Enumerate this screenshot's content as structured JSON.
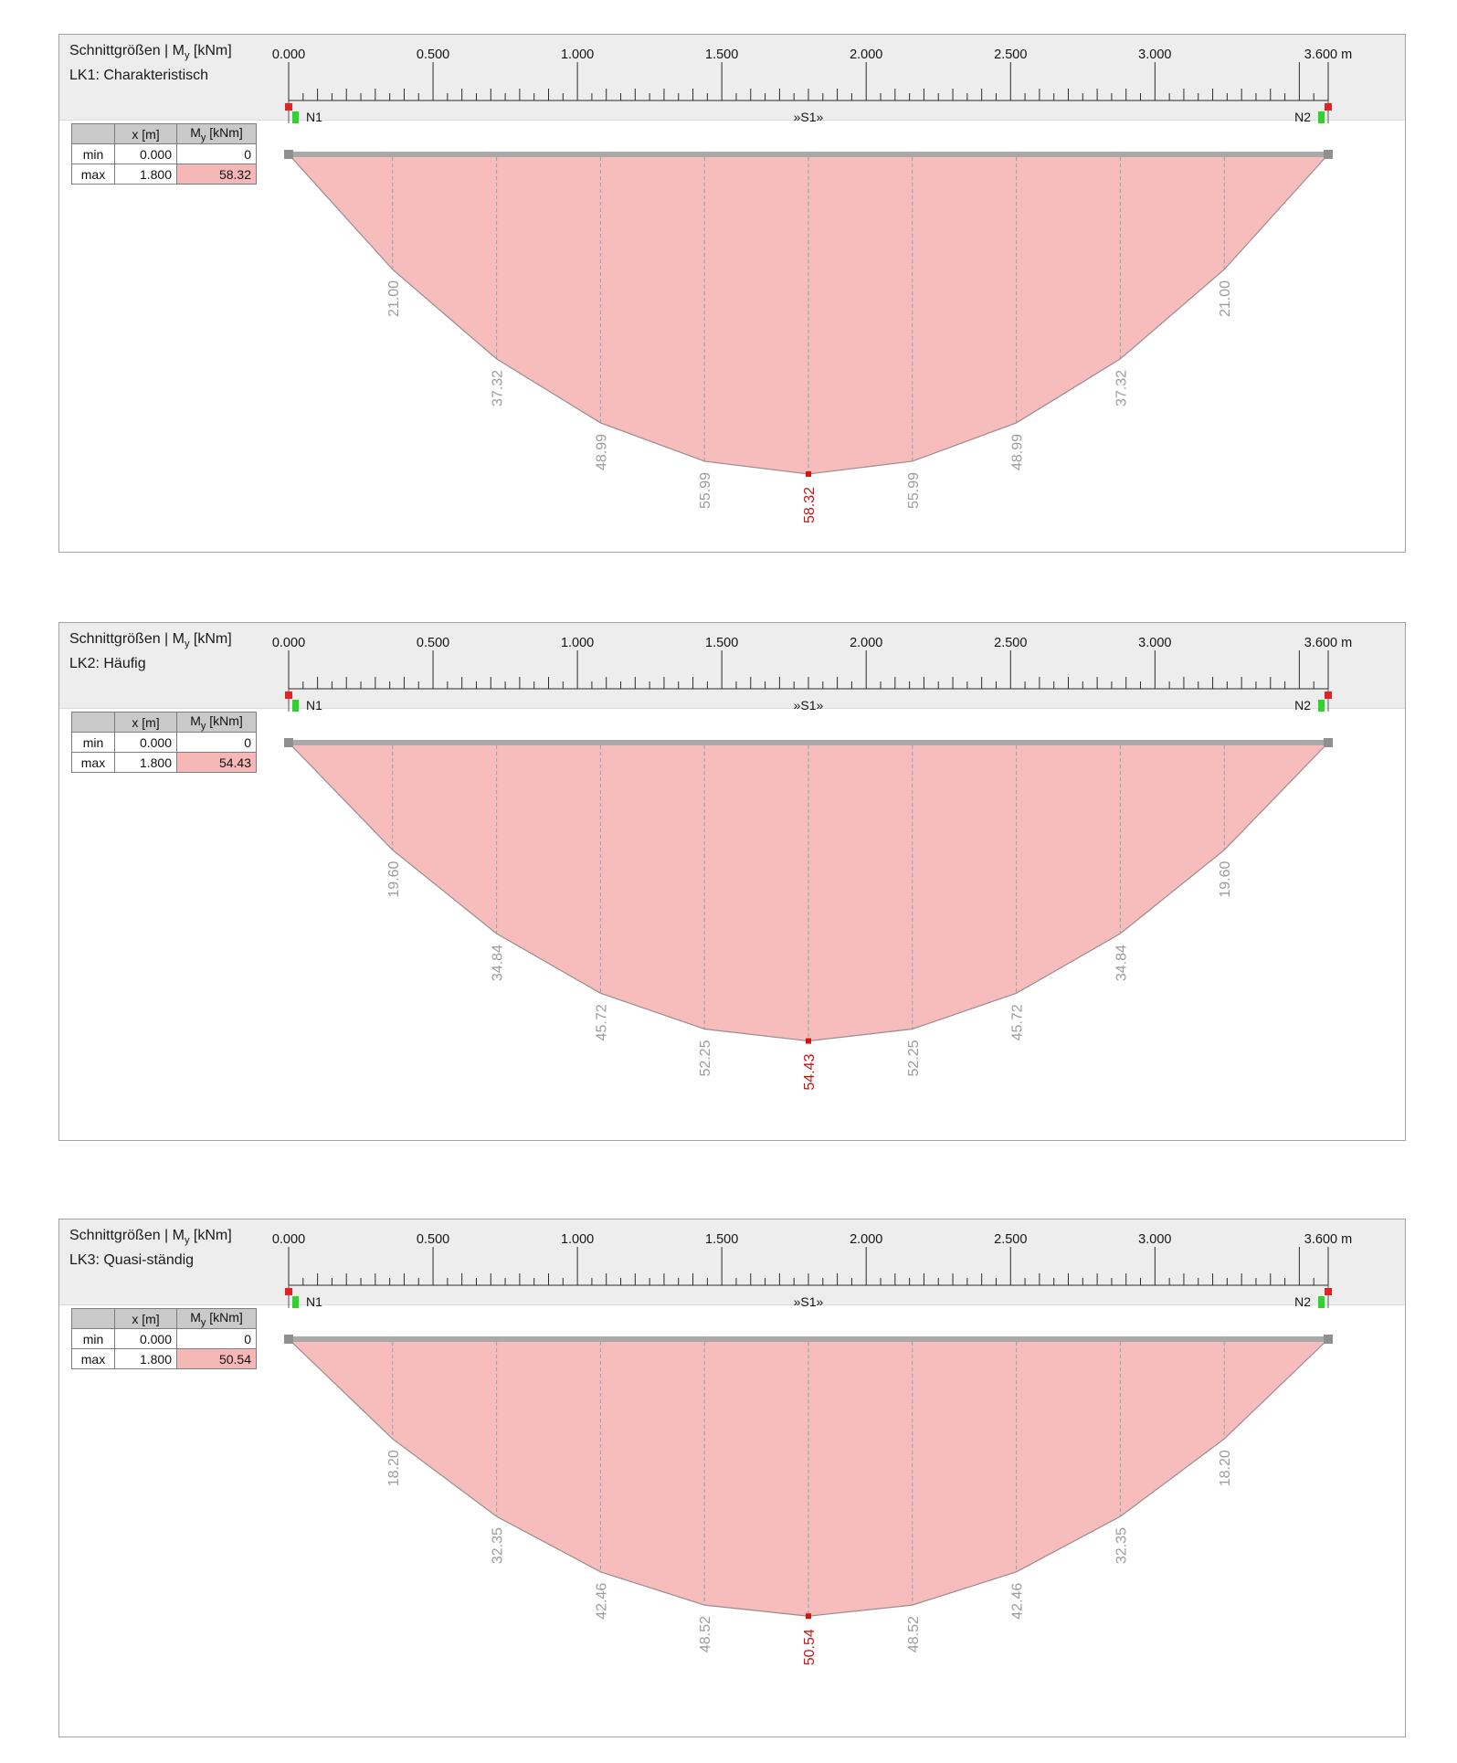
{
  "common": {
    "title_pre": "Schnittgrößen | M",
    "title_sub": "y",
    "title_post": " [kNm]",
    "node_left": "N1",
    "node_right": "N2",
    "segment_label": "»S1»",
    "table": {
      "x_header": "x [m]",
      "m_header_pre": "M",
      "m_header_sub": "y",
      "m_header_post": " [kNm]",
      "min_label": "min",
      "max_label": "max"
    }
  },
  "ruler": {
    "length_m": 3.6,
    "minor_step_m": 0.05,
    "labels": [
      {
        "v": 0.0,
        "text": "0.000"
      },
      {
        "v": 0.5,
        "text": "0.500"
      },
      {
        "v": 1.0,
        "text": "1.000"
      },
      {
        "v": 1.5,
        "text": "1.500"
      },
      {
        "v": 2.0,
        "text": "2.000"
      },
      {
        "v": 2.5,
        "text": "2.500"
      },
      {
        "v": 3.0,
        "text": "3.000"
      },
      {
        "v": 3.6,
        "text": "3.600 m"
      }
    ]
  },
  "panels": [
    {
      "subtitle": "LK1: Charakteristisch",
      "table": {
        "min_x": "0.000",
        "min_m": "0",
        "max_x": "1.800",
        "max_m": "58.32"
      }
    },
    {
      "subtitle": "LK2: Häufig",
      "table": {
        "min_x": "0.000",
        "min_m": "0",
        "max_x": "1.800",
        "max_m": "54.43"
      }
    },
    {
      "subtitle": "LK3: Quasi-ständig",
      "table": {
        "min_x": "0.000",
        "min_m": "0",
        "max_x": "1.800",
        "max_m": "50.54"
      }
    }
  ],
  "chart_data": [
    {
      "type": "area",
      "title": "Schnittgrößen | My [kNm] — LK1: Charakteristisch",
      "xlabel": "x [m]",
      "ylabel": "My [kNm]",
      "x_range_m": [
        0,
        3.6
      ],
      "x_m": [
        0,
        0.36,
        0.72,
        1.08,
        1.44,
        1.8,
        2.16,
        2.52,
        2.88,
        3.24,
        3.6
      ],
      "my_knm": [
        0,
        21.0,
        37.32,
        48.99,
        55.99,
        58.32,
        55.99,
        48.99,
        37.32,
        21.0,
        0
      ],
      "station_labels": [
        "21.00",
        "37.32",
        "48.99",
        "55.99",
        "58.32",
        "55.99",
        "48.99",
        "37.32",
        "21.00"
      ],
      "max": {
        "x_m": 1.8,
        "value": 58.32
      },
      "min": {
        "x_m": 0.0,
        "value": 0
      }
    },
    {
      "type": "area",
      "title": "Schnittgrößen | My [kNm] — LK2: Häufig",
      "xlabel": "x [m]",
      "ylabel": "My [kNm]",
      "x_range_m": [
        0,
        3.6
      ],
      "x_m": [
        0,
        0.36,
        0.72,
        1.08,
        1.44,
        1.8,
        2.16,
        2.52,
        2.88,
        3.24,
        3.6
      ],
      "my_knm": [
        0,
        19.6,
        34.84,
        45.72,
        52.25,
        54.43,
        52.25,
        45.72,
        34.84,
        19.6,
        0
      ],
      "station_labels": [
        "19.60",
        "34.84",
        "45.72",
        "52.25",
        "54.43",
        "52.25",
        "45.72",
        "34.84",
        "19.60"
      ],
      "max": {
        "x_m": 1.8,
        "value": 54.43
      },
      "min": {
        "x_m": 0.0,
        "value": 0
      }
    },
    {
      "type": "area",
      "title": "Schnittgrößen | My [kNm] — LK3: Quasi-ständig",
      "xlabel": "x [m]",
      "ylabel": "My [kNm]",
      "x_range_m": [
        0,
        3.6
      ],
      "x_m": [
        0,
        0.36,
        0.72,
        1.08,
        1.44,
        1.8,
        2.16,
        2.52,
        2.88,
        3.24,
        3.6
      ],
      "my_knm": [
        0,
        18.2,
        32.35,
        42.46,
        48.52,
        50.54,
        48.52,
        42.46,
        32.35,
        18.2,
        0
      ],
      "station_labels": [
        "18.20",
        "32.35",
        "42.46",
        "48.52",
        "50.54",
        "48.52",
        "42.46",
        "32.35",
        "18.20"
      ],
      "max": {
        "x_m": 1.8,
        "value": 50.54
      },
      "min": {
        "x_m": 0.0,
        "value": 0
      }
    }
  ],
  "colors": {
    "fill": "#f7bdbd",
    "outline": "#9b8b8b",
    "dashed": "#8aa5a5",
    "value_label": "#9c9c9c",
    "max_label": "#c31515",
    "max_marker": "#d01414",
    "node_red": "#e02323",
    "node_green": "#2ed32e",
    "beam": "#a9a9a9",
    "beam_end": "#8f8f8f",
    "highlight_cell": "#f6b7b7",
    "ruler_line": "#2b2b2b"
  }
}
